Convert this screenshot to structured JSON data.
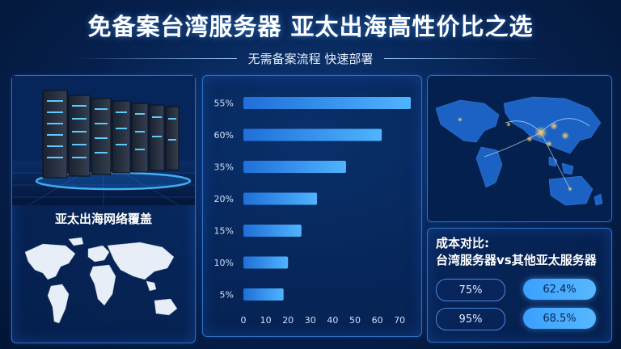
{
  "header": {
    "title": "免备案台湾服务器 亚太出海高性价比之选",
    "subtitle": "无需备案流程 快速部署"
  },
  "left_panel": {
    "coverage_label": "亚太出海网络覆盖"
  },
  "chart_data": {
    "type": "bar",
    "orientation": "horizontal",
    "categories": [
      "55%",
      "60%",
      "35%",
      "20%",
      "15%",
      "10%",
      "5%"
    ],
    "values": [
      75,
      62,
      46,
      33,
      26,
      20,
      18
    ],
    "x_ticks": [
      "0",
      "10",
      "20",
      "30",
      "40",
      "50",
      "60",
      "70"
    ],
    "xlim": [
      0,
      75
    ],
    "grid": false,
    "bar_color": "#3d9cf2"
  },
  "cost": {
    "title_line1": "成本对比:",
    "title_line2": "台湾服务器vs其他亚太服务器",
    "rows": [
      {
        "left": "75%",
        "right": "62.4%"
      },
      {
        "left": "95%",
        "right": "68.5%"
      }
    ]
  }
}
